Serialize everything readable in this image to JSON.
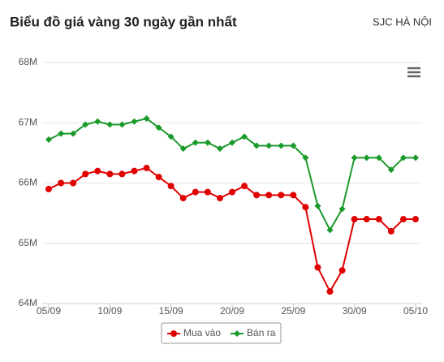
{
  "chart_data": {
    "type": "line",
    "title": "Biểu đồ giá vàng 30 ngày gần nhất",
    "subtitle": "SJC HÀ NỘI",
    "categories": [
      "05/09",
      null,
      null,
      null,
      null,
      "10/09",
      null,
      null,
      null,
      null,
      "15/09",
      null,
      null,
      null,
      null,
      "20/09",
      null,
      null,
      null,
      null,
      "25/09",
      null,
      null,
      null,
      null,
      "30/09",
      null,
      null,
      null,
      null,
      "05/10"
    ],
    "series": [
      {
        "name": "Mua vào",
        "color": "#e00000",
        "marker": "circle",
        "values": [
          65.9,
          66.0,
          66.0,
          66.15,
          66.2,
          66.15,
          66.15,
          66.2,
          66.25,
          66.1,
          65.95,
          65.75,
          65.85,
          65.85,
          65.75,
          65.85,
          65.95,
          65.8,
          65.8,
          65.8,
          65.8,
          65.6,
          64.6,
          64.2,
          64.55,
          65.4,
          65.4,
          65.4,
          65.2,
          65.4,
          65.4
        ]
      },
      {
        "name": "Bán ra",
        "color": "#1a9a2a",
        "marker": "diamond",
        "values": [
          66.72,
          66.82,
          66.82,
          66.97,
          67.02,
          66.97,
          66.97,
          67.02,
          67.07,
          66.92,
          66.77,
          66.57,
          66.67,
          66.67,
          66.57,
          66.67,
          66.77,
          66.62,
          66.62,
          66.62,
          66.62,
          66.42,
          65.62,
          65.22,
          65.57,
          66.42,
          66.42,
          66.42,
          66.22,
          66.42,
          66.42
        ]
      }
    ],
    "ylim": [
      64,
      68
    ],
    "yticks": [
      {
        "value": 64,
        "label": "64M"
      },
      {
        "value": 65,
        "label": "65M"
      },
      {
        "value": 66,
        "label": "66M"
      },
      {
        "value": 67,
        "label": "67M"
      },
      {
        "value": 68,
        "label": "68M"
      }
    ],
    "grid": true,
    "legend": "bottom"
  }
}
